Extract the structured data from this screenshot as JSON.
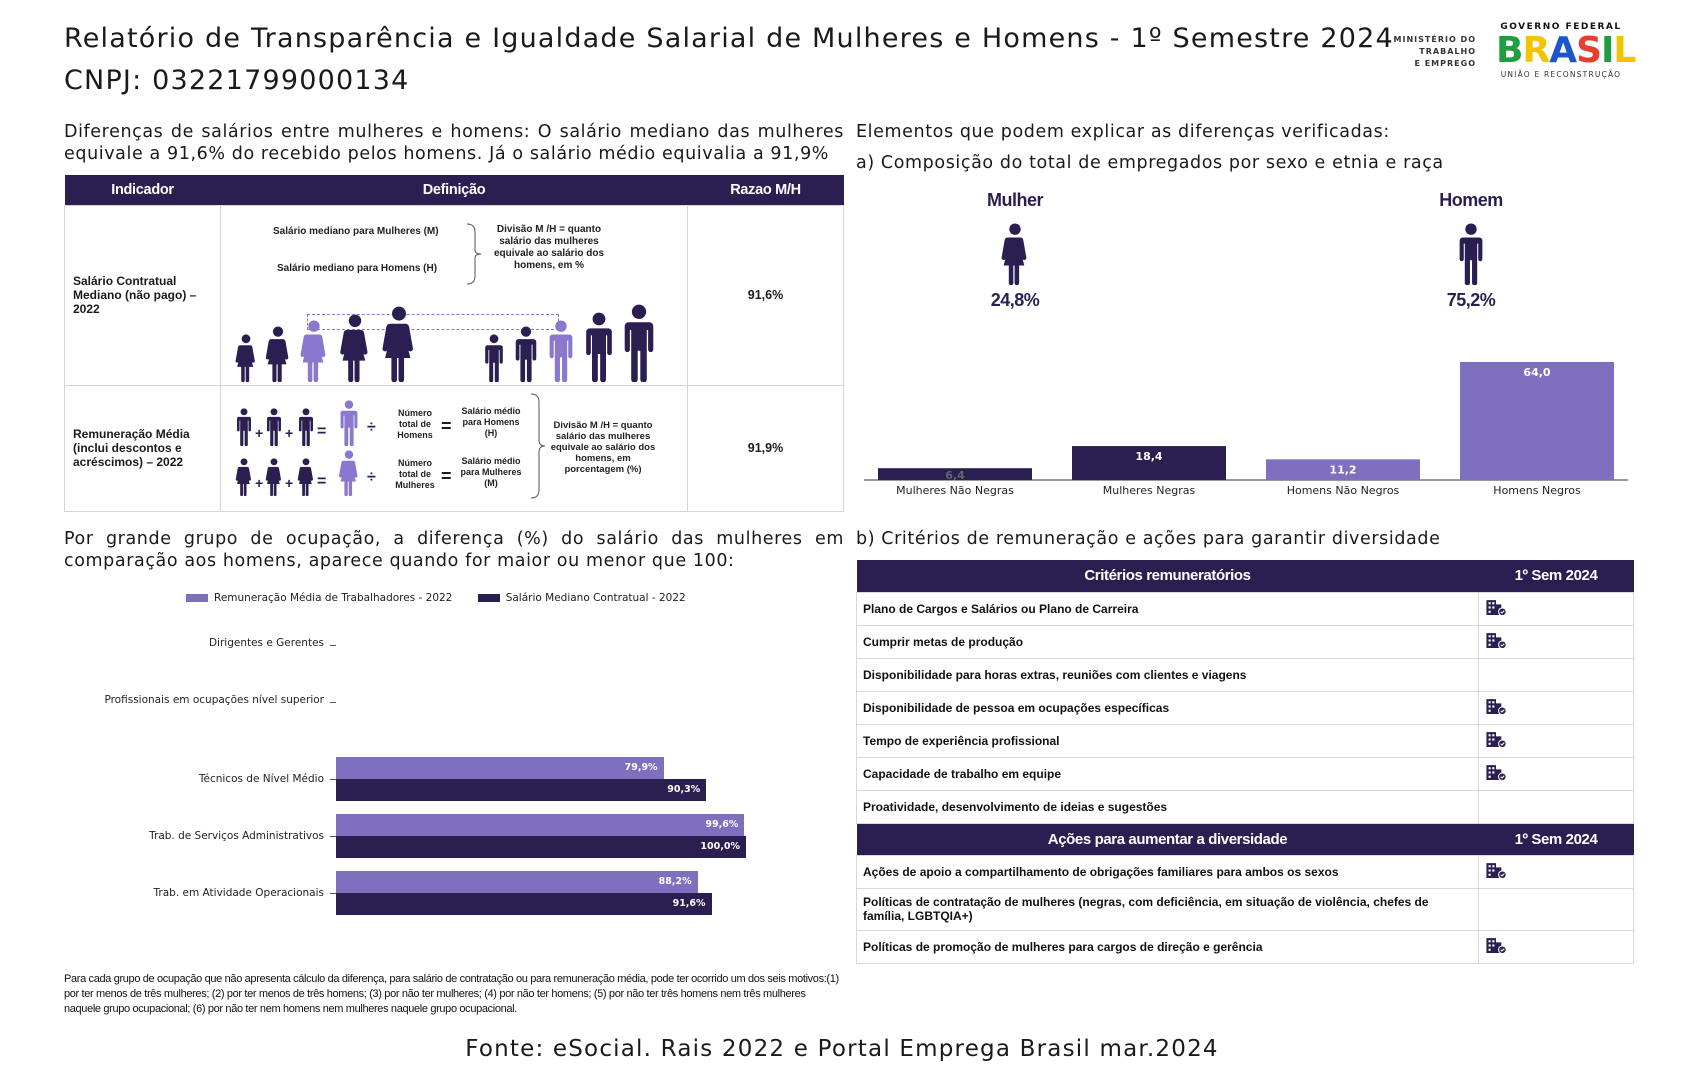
{
  "header": {
    "title": "Relatório de Transparência e Igualdade Salarial de Mulheres e Homens - 1º Semestre 2024",
    "cnpj": "CNPJ: 03221799000134",
    "logo_ministerio": [
      "MINISTÉRIO DO",
      "TRABALHO",
      "E EMPREGO"
    ],
    "logo_gov_top": "GOVERNO FEDERAL",
    "logo_gov_word": "BRASIL",
    "logo_gov_bottom": "UNIÃO E RECONSTRUÇÃO"
  },
  "salary_diff": {
    "text": "Diferenças de salários entre mulheres e homens: O salário mediano das mulheres equivale a 91,6% do recebido pelos homens. Já o salário médio equivalia a 91,9%"
  },
  "indicator_table": {
    "headers": [
      "Indicador",
      "Definição",
      "Razao M/H"
    ],
    "rows": [
      {
        "indicator": "Salário Contratual Mediano (não pago) – 2022",
        "value": "91,6%",
        "def_m": "Salário mediano para Mulheres (M)",
        "def_h": "Salário mediano para Homens (H)",
        "def_div": "Divisão M /H = quanto salário das mulheres equivale ao salário dos homens, em %"
      },
      {
        "indicator": "Remuneração Média (inclui descontos e acréscimos) – 2022",
        "value": "91,9%",
        "num_h": "Número total de Homens",
        "sal_h": "Salário médio para Homens (H)",
        "num_m": "Número total de Mulheres",
        "sal_m": "Salário médio para Mulheres (M)",
        "def_div": "Divisão M /H = quanto salário das mulheres equivale ao salário dos homens, em porcentagem (%)"
      }
    ]
  },
  "elements": {
    "heading": "Elementos que podem explicar as diferenças verificadas:",
    "sub_a": "a) Composição do total de empregados por sexo e etnia e raça",
    "sub_b": "b) Critérios de remuneração e ações para garantir diversidade",
    "mulher_label": "Mulher",
    "mulher_pct": "24,8%",
    "homem_label": "Homem",
    "homem_pct": "75,2%"
  },
  "occupation": {
    "text": "Por grande grupo de ocupação, a diferença (%) do salário das mulheres em comparação aos homens, aparece quando for maior ou menor que 100:"
  },
  "colors": {
    "dark": "#2b1f52",
    "light": "#7f6fbf",
    "icon_w": "#2b1f52",
    "icon_w_light": "#8a78cf"
  },
  "chart_data": [
    {
      "type": "bar",
      "categories": [
        "Mulheres Não Negras",
        "Mulheres Negras",
        "Homens Não Negros",
        "Homens Negros"
      ],
      "values": [
        6.4,
        18.4,
        11.2,
        64.0
      ],
      "labels": [
        "6,4",
        "18,4",
        "11,2",
        "64,0"
      ],
      "ylim": [
        0,
        70
      ]
    },
    {
      "type": "bar",
      "orientation": "horizontal",
      "categories": [
        "Dirigentes e Gerentes",
        "Profissionais em ocupações nível superior",
        "Técnicos de Nível Médio",
        "Trab. de Serviços Administrativos",
        "Trab. em Atividade Operacionais"
      ],
      "series": [
        {
          "name": "Remuneração Média de Trabalhadores - 2022",
          "values": [
            null,
            null,
            79.9,
            99.6,
            88.2
          ],
          "labels": [
            "",
            "",
            "79,9%",
            "99,6%",
            "88,2%"
          ]
        },
        {
          "name": "Salário Mediano Contratual - 2022",
          "values": [
            null,
            null,
            90.3,
            100.0,
            91.6
          ],
          "labels": [
            "",
            "",
            "90,3%",
            "100,0%",
            "91,6%"
          ]
        }
      ],
      "xlim": [
        0,
        100
      ],
      "legend": "top"
    }
  ],
  "criteria_table": {
    "header": "Critérios remuneratórios",
    "col": "1º Sem 2024",
    "rows": [
      {
        "label": "Plano de Cargos e Salários ou Plano de Carreira",
        "mark": true
      },
      {
        "label": "Cumprir metas de produção",
        "mark": true
      },
      {
        "label": "Disponibilidade para horas extras, reuniões com clientes e viagens",
        "mark": false
      },
      {
        "label": "Disponibilidade de pessoa em ocupações específicas",
        "mark": true
      },
      {
        "label": "Tempo de experiência profissional",
        "mark": true
      },
      {
        "label": "Capacidade de trabalho em equipe",
        "mark": true
      },
      {
        "label": "Proatividade, desenvolvimento de ideias e sugestões",
        "mark": false
      }
    ]
  },
  "actions_table": {
    "header": "Ações para aumentar a diversidade",
    "col": "1º Sem 2024",
    "rows": [
      {
        "label": "Ações de apoio a compartilhamento de obrigações familiares para ambos os sexos",
        "mark": true
      },
      {
        "label": "Políticas de contratação de mulheres (negras, com deficiência, em situação de violência, chefes de família, LGBTQIA+)",
        "mark": false
      },
      {
        "label": "Políticas de promoção de mulheres para cargos de direção e gerência",
        "mark": true
      }
    ]
  },
  "footnote": "Para cada grupo de ocupação que não apresenta cálculo da diferença, para salário de contratação ou para remuneração média, pode ter ocorrido um dos seis motivos:(1) por ter menos de três mulheres; (2) por ter menos de três homens; (3) por não ter mulheres; (4) por não ter homens; (5) por não ter três homens nem três mulheres naquele grupo ocupacional; (6) por não ter nem homens nem mulheres naquele grupo ocupacional.",
  "fonte": "Fonte: eSocial. Rais 2022 e Portal Emprega Brasil mar.2024"
}
